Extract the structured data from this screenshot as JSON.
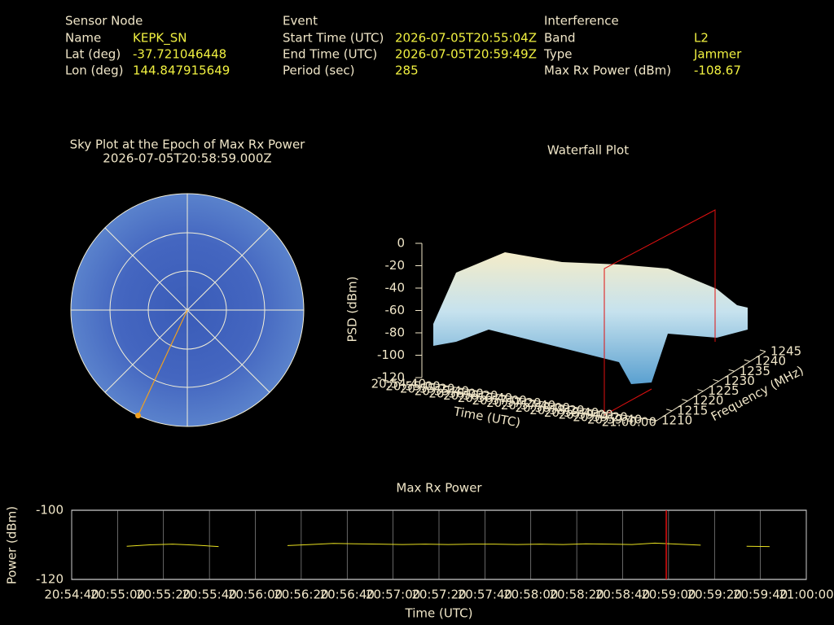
{
  "header": {
    "sensor": {
      "title": "Sensor Node",
      "rows": [
        [
          "Name",
          "KEPK_SN"
        ],
        [
          "Lat (deg)",
          "-37.721046448"
        ],
        [
          "Lon (deg)",
          "144.847915649"
        ]
      ]
    },
    "event": {
      "title": "Event",
      "rows": [
        [
          "Start Time (UTC)",
          "2026-07-05T20:55:04Z"
        ],
        [
          "End Time (UTC)",
          "2026-07-05T20:59:49Z"
        ],
        [
          "Period (sec)",
          "285"
        ]
      ]
    },
    "interference": {
      "title": "Interference",
      "rows": [
        [
          "Band",
          "L2"
        ],
        [
          "Type",
          "Jammer"
        ],
        [
          "Max Rx Power (dBm)",
          "-108.67"
        ]
      ]
    }
  },
  "chart_data": [
    {
      "type": "polar",
      "title": "Sky Plot at the Epoch of Max Rx Power",
      "subtitle": "2026-07-05T20:58:59.000Z",
      "rlim": [
        90,
        0
      ],
      "azimuth": [
        205
      ],
      "elevation": [
        0
      ],
      "color": "#f0a020"
    },
    {
      "type": "waterfall",
      "title": "Waterfall Plot",
      "zlabel": "PSD (dBm)",
      "zlim": [
        -120,
        0
      ],
      "zticks": [
        0,
        -20,
        -40,
        -60,
        -80,
        -100,
        -120
      ],
      "ylabel": "Frequency (MHz)",
      "ylim": [
        1210,
        1245
      ],
      "yticks": [
        1210,
        1215,
        1220,
        1225,
        1230,
        1235,
        1240,
        1245
      ],
      "xlabel": "Time (UTC)",
      "xlim": [
        "20:54:40",
        "21:00:00"
      ],
      "xticks": [
        "20:54:40",
        "20:55:00",
        "20:55:20",
        "20:55:40",
        "20:56:00",
        "20:56:20",
        "20:56:40",
        "20:57:00",
        "20:57:20",
        "20:57:40",
        "20:58:00",
        "20:58:20",
        "20:58:40",
        "20:59:00",
        "20:59:20",
        "20:59:40",
        "21:00:00"
      ]
    },
    {
      "type": "line",
      "title": "Max Rx Power",
      "xlabel": "Time (UTC)",
      "ylabel": "Power (dBm)",
      "ylim": [
        -120,
        -100
      ],
      "yticks": [
        -120,
        -100
      ],
      "xlim": [
        "20:54:40",
        "21:00:00"
      ],
      "xticks": [
        "20:54:40",
        "20:55:00",
        "20:55:20",
        "20:55:40",
        "20:56:00",
        "20:56:20",
        "20:56:40",
        "20:57:00",
        "20:57:20",
        "20:57:40",
        "20:58:00",
        "20:58:20",
        "20:58:40",
        "20:59:00",
        "20:59:20",
        "20:59:40",
        "21:00:00"
      ],
      "marker_x": "20:58:59",
      "marker_color": "#e01010",
      "grid": true,
      "x": [
        "20:55:04",
        "20:55:14",
        "20:55:24",
        "20:55:34",
        "20:55:44",
        "20:55:54",
        "20:56:04",
        "20:56:14",
        "20:56:24",
        "20:56:34",
        "20:56:44",
        "20:56:54",
        "20:57:04",
        "20:57:14",
        "20:57:24",
        "20:57:34",
        "20:57:44",
        "20:57:54",
        "20:58:04",
        "20:58:14",
        "20:58:24",
        "20:58:34",
        "20:58:44",
        "20:58:54",
        "20:59:04",
        "20:59:14",
        "20:59:24",
        "20:59:34",
        "20:59:44"
      ],
      "series": [
        {
          "name": "Max Rx Power",
          "color": "#e8e020",
          "values": [
            -110.4,
            -110.0,
            -109.8,
            -110.1,
            -110.5,
            null,
            null,
            -110.2,
            -109.9,
            -109.6,
            -109.7,
            -109.8,
            -109.9,
            -109.8,
            -109.9,
            -109.8,
            -109.8,
            -109.9,
            -109.8,
            -109.9,
            -109.7,
            -109.8,
            -109.9,
            -109.5,
            -109.8,
            -110.1,
            null,
            -110.4,
            -110.5
          ]
        }
      ]
    }
  ]
}
